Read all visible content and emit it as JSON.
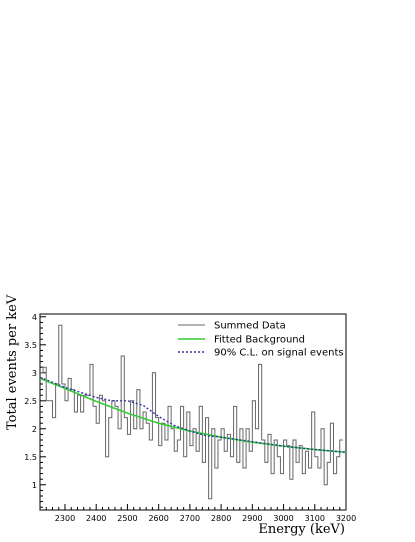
{
  "chart_data": {
    "type": "line",
    "xlabel": "Energy (keV)",
    "ylabel": "Total events per keV",
    "xlim": [
      2220,
      3200
    ],
    "ylim": [
      0.55,
      4.05
    ],
    "x_ticks": [
      2300,
      2400,
      2500,
      2600,
      2700,
      2800,
      2900,
      3000,
      3100,
      3200
    ],
    "y_ticks": [
      1,
      1.5,
      2,
      2.5,
      3,
      3.5,
      4
    ],
    "legend_position": "top-right",
    "grid": false,
    "series": [
      {
        "name": "Summed Data",
        "style": "histogram",
        "color": "#666666",
        "bin_width": 10,
        "x_start": 2220,
        "values": [
          3.0,
          3.1,
          2.5,
          2.5,
          2.2,
          2.8,
          3.85,
          2.8,
          2.5,
          2.9,
          2.7,
          2.3,
          2.6,
          2.3,
          2.6,
          2.6,
          3.15,
          2.4,
          2.1,
          2.6,
          2.5,
          1.5,
          2.2,
          2.5,
          2.4,
          2.0,
          3.3,
          2.2,
          1.9,
          2.5,
          2.0,
          2.7,
          2.0,
          2.3,
          2.1,
          1.8,
          3.0,
          2.2,
          1.7,
          2.1,
          1.8,
          2.4,
          2.0,
          1.6,
          1.8,
          2.4,
          1.5,
          2.3,
          1.7,
          2.0,
          1.6,
          2.4,
          1.4,
          2.2,
          0.75,
          2.0,
          1.3,
          1.8,
          2.0,
          1.6,
          1.9,
          1.5,
          2.4,
          1.4,
          2.0,
          1.3,
          2.0,
          1.6,
          2.5,
          2.0,
          3.15,
          1.8,
          1.4,
          1.9,
          1.2,
          1.8,
          1.5,
          1.2,
          1.8,
          1.7,
          1.1,
          1.8,
          1.4,
          1.7,
          1.2,
          1.6,
          1.3,
          2.3,
          1.5,
          1.3,
          2.0,
          1.0,
          1.4,
          2.1,
          1.2,
          1.5,
          1.8
        ]
      },
      {
        "name": "Fitted Background",
        "style": "line",
        "color": "#33cc33",
        "x": [
          2220,
          2300,
          2400,
          2500,
          2600,
          2700,
          2800,
          2900,
          3000,
          3100,
          3200
        ],
        "y": [
          2.9,
          2.72,
          2.49,
          2.28,
          2.1,
          1.96,
          1.85,
          1.76,
          1.69,
          1.63,
          1.58
        ]
      },
      {
        "name": "90% C.L. on signal events",
        "style": "dashed",
        "color": "#3333aa",
        "x": [
          2220,
          2300,
          2400,
          2450,
          2500,
          2550,
          2600,
          2650,
          2700,
          2750,
          2800,
          2900,
          3000,
          3100,
          3200
        ],
        "y": [
          2.92,
          2.74,
          2.56,
          2.5,
          2.5,
          2.42,
          2.22,
          2.06,
          1.96,
          1.88,
          1.85,
          1.77,
          1.69,
          1.63,
          1.58
        ]
      }
    ]
  }
}
